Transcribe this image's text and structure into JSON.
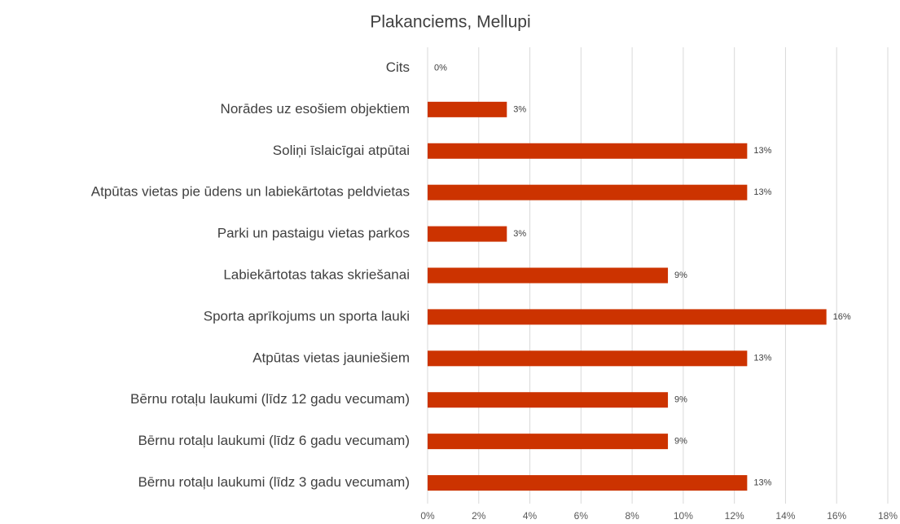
{
  "chart_data": {
    "type": "bar",
    "title": "Plakanciems, Mellupi",
    "categories": [
      "Cits",
      "Norādes uz esošiem objektiem",
      "Soliņi īslaicīgai atpūtai",
      "Atpūtas vietas pie ūdens un labiekārtotas peldvietas",
      "Parki un pastaigu vietas parkos",
      "Labiekārtotas takas skriešanai",
      "Sporta aprīkojums un sporta lauki",
      "Atpūtas vietas jauniešiem",
      "Bērnu rotaļu laukumi (līdz 12 gadu vecumam)",
      "Bērnu rotaļu laukumi (līdz 6 gadu vecumam)",
      "Bērnu rotaļu laukumi (līdz 3 gadu vecumam)"
    ],
    "values": [
      0,
      3.1,
      12.5,
      12.5,
      3.1,
      9.4,
      15.6,
      12.5,
      9.4,
      9.4,
      12.5
    ],
    "value_labels": [
      "0%",
      "3%",
      "13%",
      "13%",
      "3%",
      "9%",
      "16%",
      "13%",
      "9%",
      "9%",
      "13%"
    ],
    "color": "#cc3300",
    "xlim": [
      0,
      18
    ],
    "xticks": [
      {
        "value": 0,
        "label": "0%"
      },
      {
        "value": 2,
        "label": "2%"
      },
      {
        "value": 4,
        "label": "4%"
      },
      {
        "value": 6,
        "label": "6%"
      },
      {
        "value": 8,
        "label": "8%"
      },
      {
        "value": 10,
        "label": "10%"
      },
      {
        "value": 12,
        "label": "12%"
      },
      {
        "value": 14,
        "label": "14%"
      },
      {
        "value": 16,
        "label": "16%"
      },
      {
        "value": 18,
        "label": "18%"
      }
    ],
    "grid": true
  }
}
